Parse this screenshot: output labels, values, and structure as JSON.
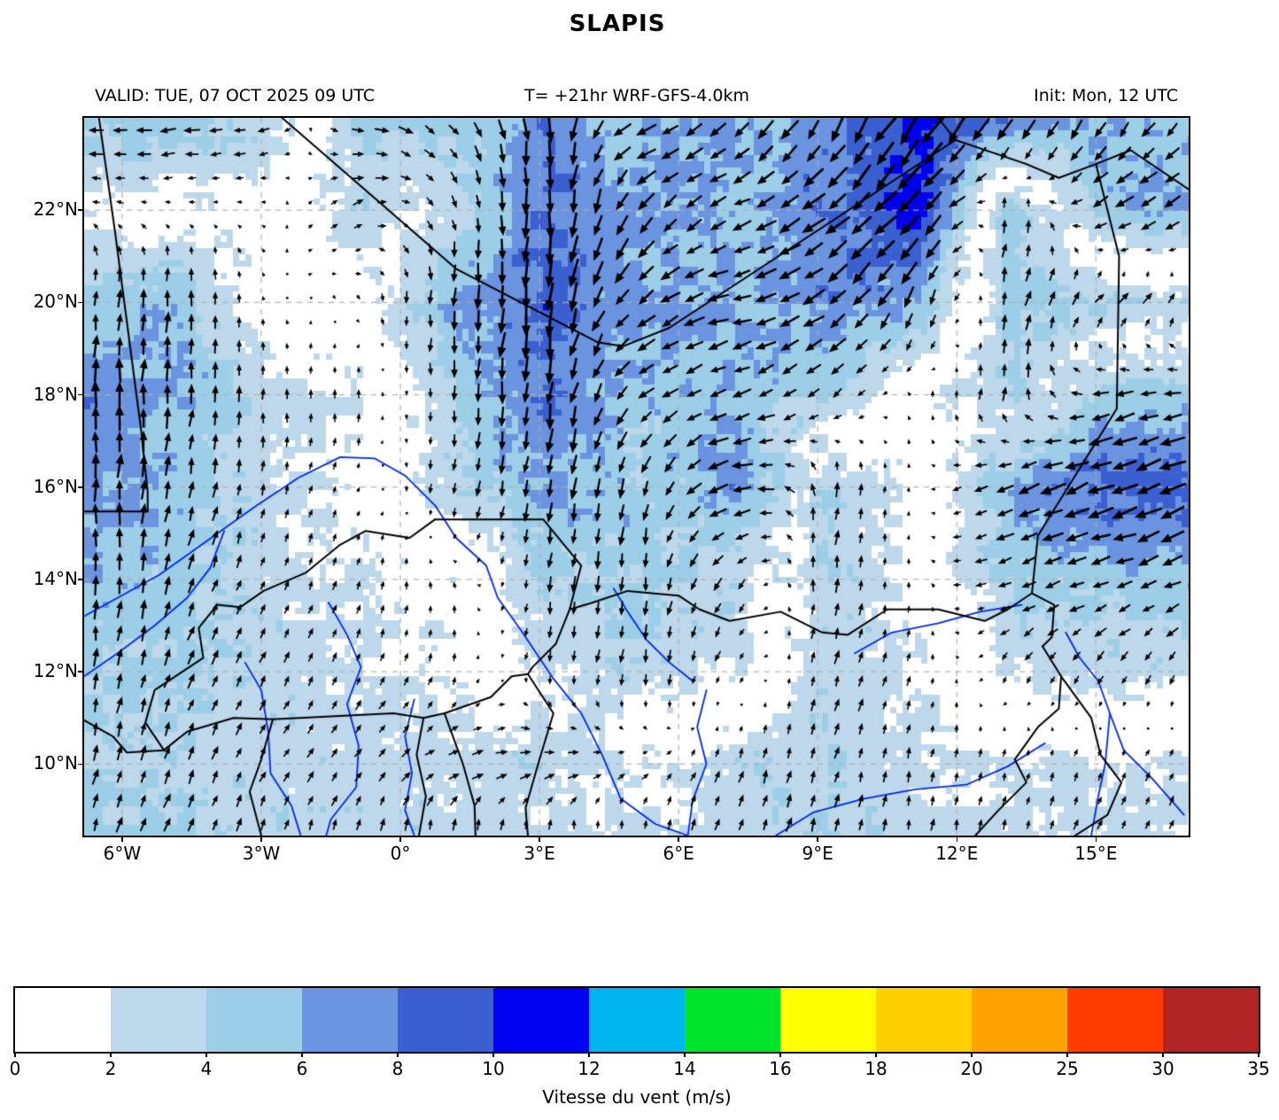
{
  "title": "SLAPIS",
  "header": {
    "valid": "VALID: TUE, 07 OCT 2025 09 UTC",
    "model": "T= +21hr WRF-GFS-4.0km",
    "init": "Init: Mon, 12 UTC"
  },
  "chart_data": {
    "type": "heatmap",
    "subtype": "wind-speed-quiver-map",
    "projection": {
      "lon_min": -6.82,
      "lon_max": 17.0,
      "lat_min": 8.45,
      "lat_max": 24.0
    },
    "xticks": {
      "values": [
        -6,
        -3,
        0,
        3,
        6,
        9,
        12,
        15
      ],
      "labels": [
        "6°W",
        "3°W",
        "0°",
        "3°E",
        "6°E",
        "9°E",
        "12°E",
        "15°E"
      ]
    },
    "yticks": {
      "values": [
        22,
        20,
        18,
        16,
        14,
        12,
        10
      ],
      "labels": [
        "22°N",
        "20°N",
        "18°N",
        "16°N",
        "14°N",
        "12°N",
        "10°N"
      ]
    },
    "grid_on": true,
    "wind_field": {
      "comment_units": "m/s, u eastward, v northward, coarse analysis grid read from figure",
      "lons": [
        -6.8,
        -4.8,
        -2.8,
        -0.8,
        1.2,
        3.2,
        5.2,
        7.2,
        9.2,
        11.2,
        13.2,
        15.2,
        17.0
      ],
      "lats": [
        24.0,
        22.0,
        20.0,
        18.0,
        16.0,
        14.0,
        12.0,
        10.0,
        8.4
      ],
      "u": [
        [
          -5.0,
          -5.0,
          -3.5,
          4.5,
          3.0,
          0.0,
          -6.0,
          -5.0,
          -3.0,
          -6.0,
          -4.0,
          -3.0,
          -3.0
        ],
        [
          -1.5,
          -1.0,
          -0.5,
          3.0,
          1.0,
          0.0,
          -4.0,
          -5.0,
          -6.0,
          -7.5,
          1.5,
          -5.0,
          -5.0
        ],
        [
          0.5,
          0.5,
          -0.3,
          0.5,
          -0.5,
          -1.0,
          -5.0,
          -6.0,
          -6.0,
          -2.0,
          1.0,
          3.0,
          2.0
        ],
        [
          0.0,
          0.5,
          0.0,
          0.0,
          0.0,
          -1.0,
          -4.0,
          -5.0,
          -3.0,
          0.0,
          0.5,
          -5.0,
          -5.0
        ],
        [
          0.0,
          1.0,
          0.5,
          0.5,
          -0.5,
          -1.0,
          -1.0,
          -7.0,
          0.5,
          0.0,
          -6.0,
          -8.0,
          -8.0
        ],
        [
          0.0,
          1.5,
          1.0,
          0.5,
          -0.5,
          -0.5,
          -0.5,
          -2.0,
          0.5,
          0.0,
          -4.0,
          -5.0,
          -5.0
        ],
        [
          0.5,
          1.5,
          1.5,
          1.0,
          0.5,
          -0.5,
          -0.5,
          -1.0,
          1.0,
          0.5,
          -1.0,
          -1.5,
          -1.0
        ],
        [
          1.0,
          1.5,
          1.5,
          2.0,
          3.0,
          3.5,
          1.5,
          1.0,
          1.0,
          0.5,
          0.5,
          1.0,
          1.0
        ],
        [
          1.0,
          1.5,
          1.0,
          0.5,
          0.0,
          -0.5,
          0.0,
          1.0,
          1.0,
          0.5,
          0.5,
          1.0,
          1.0
        ]
      ],
      "v": [
        [
          0.0,
          -0.5,
          -1.0,
          -1.0,
          -3.0,
          -8.0,
          -2.0,
          -4.5,
          -6.5,
          -8.5,
          -7.0,
          -5.0,
          -4.0
        ],
        [
          0.5,
          0.0,
          0.3,
          1.5,
          -3.0,
          -8.5,
          -5.0,
          -2.0,
          -5.0,
          -7.5,
          4.5,
          -3.0,
          -3.0
        ],
        [
          5.0,
          5.5,
          0.5,
          -1.0,
          -6.0,
          -9.0,
          -4.0,
          -1.0,
          -4.0,
          -6.0,
          5.0,
          3.0,
          3.0
        ],
        [
          7.5,
          6.0,
          3.0,
          2.0,
          -4.0,
          -8.0,
          -3.0,
          -2.0,
          -3.0,
          1.0,
          4.0,
          -1.0,
          -1.0
        ],
        [
          7.0,
          5.0,
          2.5,
          1.0,
          -3.5,
          -6.0,
          -5.0,
          -1.5,
          4.0,
          0.5,
          -3.0,
          -3.0,
          -3.0
        ],
        [
          6.0,
          4.5,
          2.5,
          2.0,
          1.5,
          -4.0,
          -4.5,
          -3.0,
          4.0,
          1.0,
          -1.5,
          -1.5,
          -2.0
        ],
        [
          4.5,
          4.0,
          3.0,
          2.0,
          2.0,
          -2.5,
          -3.5,
          -2.0,
          3.5,
          2.0,
          -2.0,
          -2.5,
          -3.0
        ],
        [
          4.0,
          3.5,
          2.5,
          2.5,
          1.0,
          0.5,
          1.0,
          3.0,
          3.5,
          2.5,
          2.0,
          2.0,
          2.0
        ],
        [
          4.0,
          4.0,
          3.0,
          3.0,
          3.5,
          3.0,
          2.5,
          3.0,
          4.0,
          3.0,
          2.5,
          2.5,
          2.5
        ]
      ]
    },
    "colorbar": {
      "label": "Vitesse du vent (m/s)",
      "levels": [
        0,
        2,
        4,
        6,
        8,
        10,
        12,
        14,
        16,
        18,
        20,
        25,
        30,
        35
      ],
      "colors": [
        "#ffffff",
        "#bdd8ea",
        "#9ccee8",
        "#6a93e0",
        "#3a5fd1",
        "#0000f0",
        "#00b4ee",
        "#00e42c",
        "#ffff00",
        "#ffd000",
        "#ffa300",
        "#ff3c00",
        "#b02423"
      ]
    },
    "colors": {
      "arrow": "#000000",
      "border": "#000000",
      "river": "#0028f0",
      "gridline": "#b0b0b0",
      "frame": "#000000"
    },
    "borders": [
      [
        [
          -6.5,
          24
        ],
        [
          -6.15,
          21.5
        ],
        [
          -5.6,
          17.3
        ],
        [
          -5.45,
          15.9
        ],
        [
          -5.45,
          15.47
        ],
        [
          -6.82,
          15.47
        ]
      ],
      [
        [
          -2.55,
          24
        ],
        [
          1.2,
          20.73
        ],
        [
          4.25,
          19.14
        ],
        [
          4.8,
          19.05
        ],
        [
          5.8,
          19.45
        ],
        [
          11.97,
          23.52
        ]
      ],
      [
        [
          11.97,
          23.52
        ],
        [
          11.6,
          24
        ]
      ],
      [
        [
          11.97,
          23.52
        ],
        [
          13.5,
          23
        ],
        [
          14.2,
          22.7
        ],
        [
          15,
          23
        ],
        [
          15.75,
          23.3
        ],
        [
          17,
          22.45
        ]
      ],
      [
        [
          15,
          23
        ],
        [
          15.5,
          21
        ],
        [
          15.45,
          17.7
        ],
        [
          13.75,
          14.95
        ],
        [
          13.62,
          13.7
        ],
        [
          14.1,
          13.45
        ],
        [
          14.05,
          12.75
        ],
        [
          13.85,
          12.55
        ]
      ],
      [
        [
          3.65,
          13.35
        ],
        [
          4.15,
          13.5
        ],
        [
          4.9,
          13.75
        ],
        [
          6,
          13.65
        ],
        [
          6.45,
          13.35
        ],
        [
          7.1,
          13.1
        ],
        [
          8.2,
          13.3
        ],
        [
          9.1,
          12.85
        ],
        [
          9.65,
          12.8
        ],
        [
          10.5,
          13.35
        ],
        [
          11.6,
          13.35
        ],
        [
          12.6,
          13.1
        ],
        [
          13.1,
          13.35
        ],
        [
          13.62,
          13.7
        ]
      ],
      [
        [
          13.85,
          12.55
        ],
        [
          14.25,
          11.9
        ],
        [
          14.2,
          11.2
        ],
        [
          13.75,
          10.8
        ],
        [
          13.25,
          10.1
        ],
        [
          13.5,
          9.6
        ],
        [
          12.9,
          9
        ],
        [
          12.4,
          8.45
        ]
      ],
      [
        [
          0.75,
          15.3
        ],
        [
          3.08,
          15.3
        ],
        [
          3.9,
          14.3
        ],
        [
          3.65,
          13.35
        ]
      ],
      [
        [
          3.65,
          13.35
        ],
        [
          3.35,
          12.6
        ],
        [
          2.85,
          12.1
        ],
        [
          2.75,
          11.95
        ],
        [
          3.3,
          11.1
        ],
        [
          3,
          10.1
        ],
        [
          2.7,
          9.05
        ],
        [
          2.75,
          8.45
        ]
      ],
      [
        [
          0.75,
          15.3
        ],
        [
          0.2,
          14.9
        ],
        [
          -0.75,
          15.05
        ],
        [
          -1.3,
          14.75
        ],
        [
          -2.03,
          14.15
        ],
        [
          -2.95,
          13.75
        ],
        [
          -3.45,
          13.4
        ],
        [
          -3.95,
          13.45
        ],
        [
          -4.35,
          12.95
        ],
        [
          -4.25,
          12.3
        ],
        [
          -5.3,
          11.6
        ],
        [
          -5.5,
          10.9
        ],
        [
          -5.1,
          10.3
        ]
      ],
      [
        [
          -5.1,
          10.3
        ],
        [
          -4.6,
          10.7
        ],
        [
          -3.6,
          11
        ],
        [
          -2.75,
          10.97
        ],
        [
          -0.15,
          11.1
        ],
        [
          0.5,
          11
        ],
        [
          0.95,
          11.1
        ],
        [
          1.95,
          11.45
        ],
        [
          2.4,
          11.9
        ],
        [
          2.75,
          11.95
        ]
      ],
      [
        [
          -2.75,
          10.97
        ],
        [
          -3,
          10.1
        ],
        [
          -3.25,
          9.4
        ],
        [
          -3,
          8.45
        ]
      ],
      [
        [
          0.5,
          11
        ],
        [
          0.35,
          10.2
        ],
        [
          0.55,
          9.3
        ],
        [
          0.4,
          8.45
        ]
      ],
      [
        [
          0.95,
          11.1
        ],
        [
          1.35,
          10
        ],
        [
          1.6,
          9.1
        ],
        [
          1.62,
          8.45
        ]
      ],
      [
        [
          14.25,
          11.9
        ],
        [
          14.9,
          11
        ],
        [
          15.1,
          10.2
        ],
        [
          15.55,
          9.6
        ],
        [
          15.25,
          8.9
        ],
        [
          14.55,
          8.45
        ]
      ],
      [
        [
          -6.82,
          10.95
        ],
        [
          -6.2,
          10.6
        ],
        [
          -5.9,
          10.25
        ],
        [
          -5.1,
          10.3
        ]
      ]
    ],
    "rivers": [
      [
        [
          -6.82,
          13.2
        ],
        [
          -6.1,
          13.6
        ],
        [
          -5.2,
          14.1
        ],
        [
          -4.5,
          14.6
        ],
        [
          -3.8,
          15.1
        ],
        [
          -3.1,
          15.6
        ],
        [
          -2.2,
          16.2
        ],
        [
          -1.3,
          16.65
        ],
        [
          -0.55,
          16.62
        ],
        [
          0.1,
          16.25
        ],
        [
          0.75,
          15.6
        ],
        [
          1.2,
          14.9
        ],
        [
          1.85,
          14.3
        ],
        [
          2.1,
          13.6
        ],
        [
          2.6,
          12.9
        ],
        [
          3.3,
          11.85
        ],
        [
          3.9,
          11.1
        ],
        [
          4.35,
          10.2
        ],
        [
          4.75,
          9.25
        ],
        [
          5.5,
          8.7
        ],
        [
          6.2,
          8.45
        ]
      ],
      [
        [
          -6.82,
          11.9
        ],
        [
          -6.1,
          12.4
        ],
        [
          -5.3,
          13
        ],
        [
          -4.6,
          13.6
        ],
        [
          -4.1,
          14.25
        ],
        [
          -3.8,
          15.05
        ]
      ],
      [
        [
          -3.35,
          12.2
        ],
        [
          -3,
          11.6
        ],
        [
          -2.85,
          10.7
        ],
        [
          -2.8,
          9.8
        ],
        [
          -2.35,
          9.1
        ],
        [
          -2.15,
          8.45
        ]
      ],
      [
        [
          -1.55,
          13.5
        ],
        [
          -1.15,
          12.8
        ],
        [
          -0.85,
          12.1
        ],
        [
          -1.15,
          11.3
        ],
        [
          -0.9,
          10.4
        ],
        [
          -0.95,
          9.5
        ],
        [
          -1.5,
          8.8
        ],
        [
          -1.6,
          8.45
        ]
      ],
      [
        [
          0.3,
          11.4
        ],
        [
          0.1,
          10.6
        ],
        [
          0.25,
          9.8
        ],
        [
          0.1,
          9
        ],
        [
          0.3,
          8.45
        ]
      ],
      [
        [
          9.8,
          12.4
        ],
        [
          10.6,
          12.85
        ],
        [
          11.6,
          13.05
        ],
        [
          12.5,
          13.3
        ],
        [
          13.4,
          13.45
        ]
      ],
      [
        [
          16.9,
          8.9
        ],
        [
          16.2,
          9.7
        ],
        [
          15.6,
          10.3
        ],
        [
          15.3,
          11.1
        ],
        [
          15.05,
          11.8
        ],
        [
          14.65,
          12.3
        ],
        [
          14.35,
          12.85
        ]
      ],
      [
        [
          14.9,
          8.45
        ],
        [
          15.05,
          9.3
        ],
        [
          15.2,
          10
        ],
        [
          15.3,
          11.1
        ]
      ],
      [
        [
          13.9,
          10.45
        ],
        [
          13.1,
          9.95
        ],
        [
          12.2,
          9.55
        ],
        [
          11.1,
          9.45
        ],
        [
          10,
          9.25
        ],
        [
          8.9,
          8.95
        ],
        [
          8.1,
          8.45
        ]
      ],
      [
        [
          4.6,
          13.8
        ],
        [
          4.9,
          13.3
        ],
        [
          5.3,
          12.7
        ],
        [
          5.8,
          12.2
        ],
        [
          6.3,
          11.8
        ]
      ],
      [
        [
          6.6,
          11.6
        ],
        [
          6.4,
          10.8
        ],
        [
          6.6,
          10
        ],
        [
          6.3,
          9.2
        ],
        [
          6.2,
          8.45
        ]
      ]
    ]
  }
}
